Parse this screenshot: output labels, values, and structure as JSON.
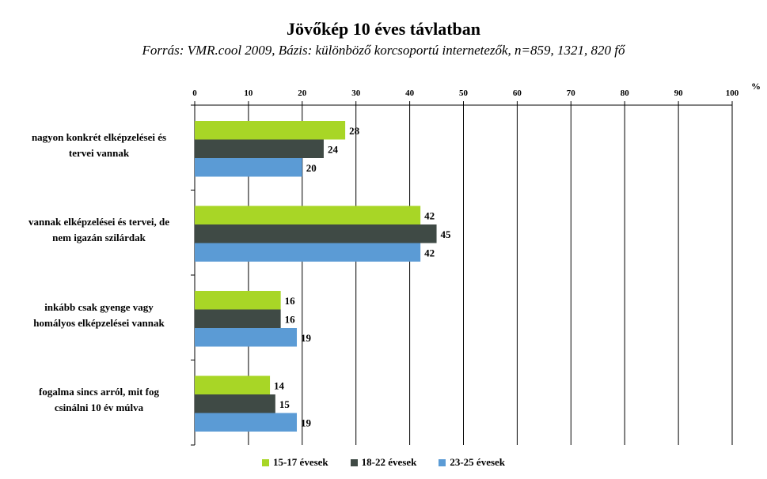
{
  "chart_data": {
    "type": "bar",
    "orientation": "horizontal",
    "title": "Jövőkép 10 éves távlatban",
    "subtitle": "Forrás: VMR.cool 2009, Bázis: különböző korcsoportú internetezők, n=859, 1321, 820 fő",
    "unit_label": "%",
    "xlim": [
      0,
      100
    ],
    "x_ticks": [
      "0",
      "10",
      "20",
      "30",
      "40",
      "50",
      "60",
      "70",
      "80",
      "90",
      "100"
    ],
    "grid": true,
    "legend_position": "bottom",
    "categories": [
      "nagyon konkrét elképzelései és tervei vannak",
      "vannak elképzelései és tervei, de nem igazán szilárdak",
      "inkább csak gyenge vagy homályos elképzelései vannak",
      "fogalma sincs arról, mit fog csinálni 10 év múlva"
    ],
    "category_lines": [
      [
        "nagyon konkrét elképzelései és",
        "tervei vannak"
      ],
      [
        "vannak elképzelései és tervei, de",
        "nem igazán szilárdak"
      ],
      [
        "inkább csak gyenge vagy",
        "homályos elképzelései vannak"
      ],
      [
        "fogalma sincs arról, mit fog",
        "csinálni 10 év múlva"
      ]
    ],
    "series": [
      {
        "name": "15-17 évesek",
        "color": "#a8d626",
        "values": [
          28,
          42,
          16,
          14
        ]
      },
      {
        "name": "18-22 évesek",
        "color": "#3f4a45",
        "values": [
          24,
          45,
          16,
          15
        ]
      },
      {
        "name": "23-25 évesek",
        "color": "#5b9bd5",
        "values": [
          20,
          42,
          19,
          19
        ]
      }
    ]
  }
}
